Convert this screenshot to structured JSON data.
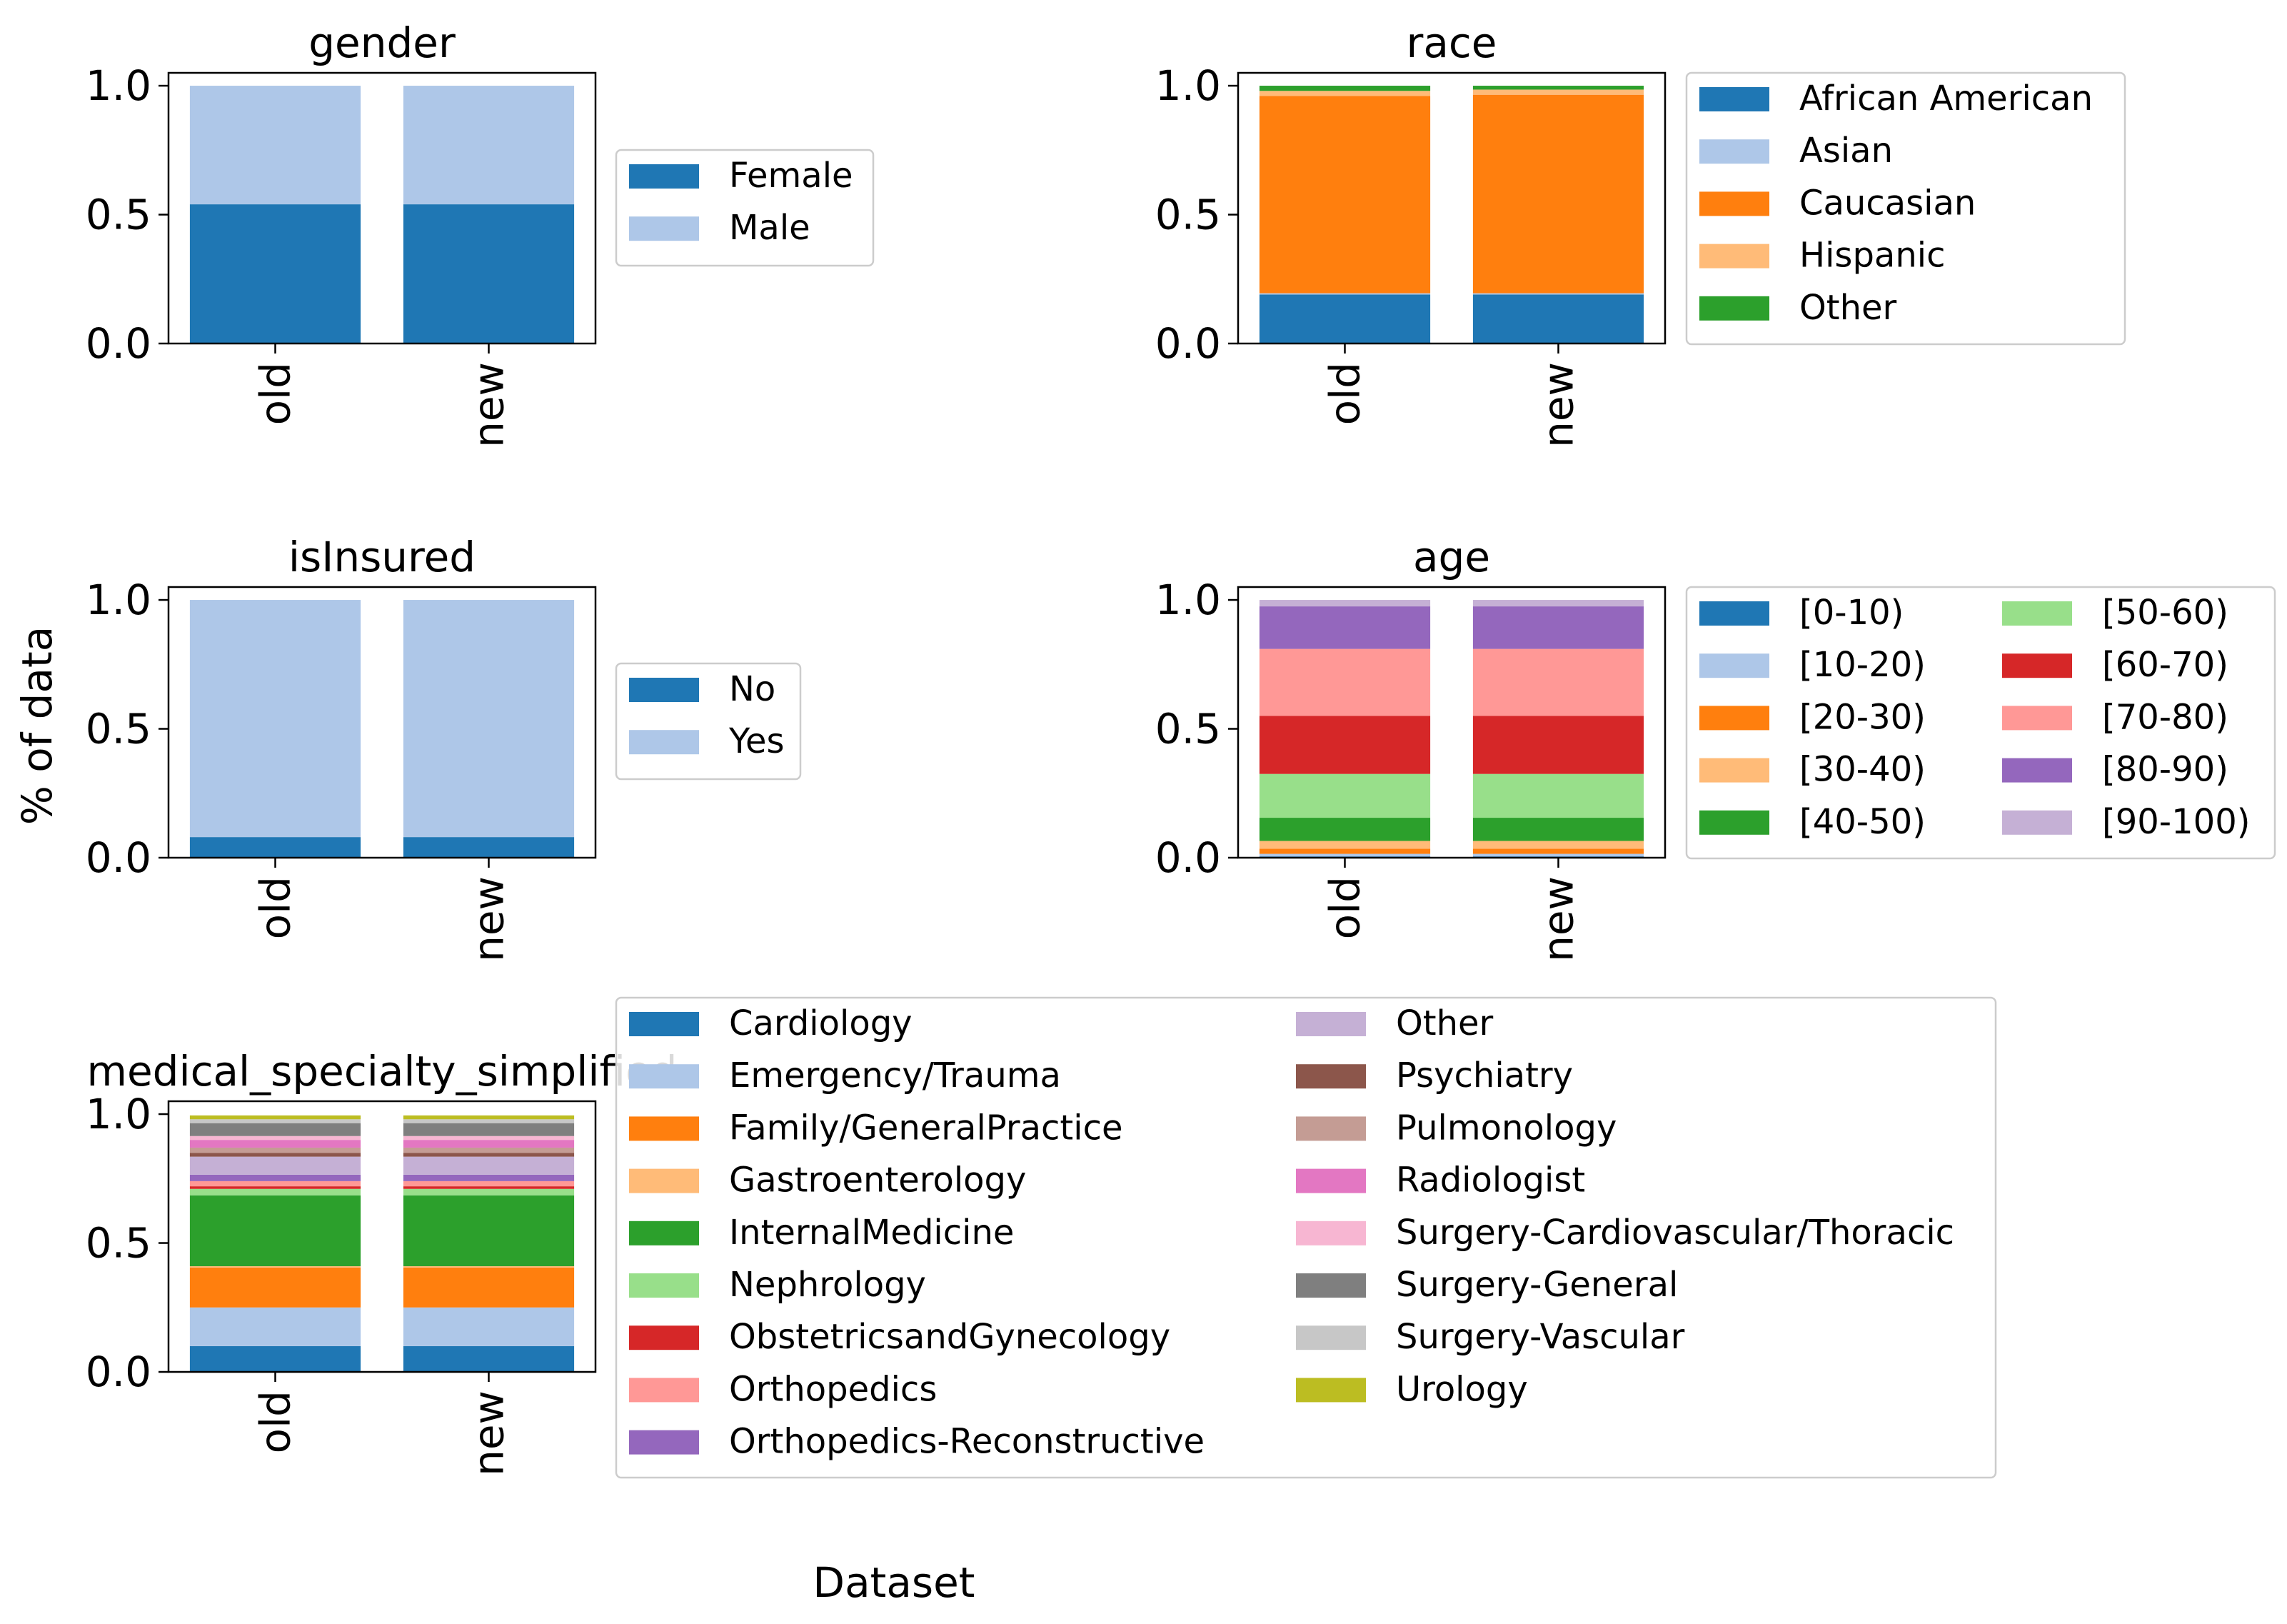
{
  "figure": {
    "ylabel": "% of data",
    "xlabel": "Dataset"
  },
  "chart_data": [
    {
      "type": "bar",
      "stacked": true,
      "title": "gender",
      "categories": [
        "old",
        "new"
      ],
      "ylim": [
        0,
        1.05
      ],
      "yticks": [
        "0.0",
        "0.5",
        "1.0"
      ],
      "legend_placement": "right",
      "legend_columns": 1,
      "series": [
        {
          "name": "Female",
          "color": "#1f77b4",
          "values": [
            0.54,
            0.54
          ]
        },
        {
          "name": "Male",
          "color": "#aec7e8",
          "values": [
            0.46,
            0.46
          ]
        }
      ]
    },
    {
      "type": "bar",
      "stacked": true,
      "title": "race",
      "categories": [
        "old",
        "new"
      ],
      "ylim": [
        0,
        1.05
      ],
      "yticks": [
        "0.0",
        "0.5",
        "1.0"
      ],
      "legend_placement": "right",
      "legend_columns": 1,
      "series": [
        {
          "name": "African American",
          "color": "#1f77b4",
          "values": [
            0.19,
            0.19
          ]
        },
        {
          "name": "Asian",
          "color": "#aec7e8",
          "values": [
            0.005,
            0.005
          ]
        },
        {
          "name": "Caucasian",
          "color": "#ff7f0e",
          "values": [
            0.765,
            0.77
          ]
        },
        {
          "name": "Hispanic",
          "color": "#ffbb78",
          "values": [
            0.02,
            0.02
          ]
        },
        {
          "name": "Other",
          "color": "#2ca02c",
          "values": [
            0.02,
            0.015
          ]
        }
      ]
    },
    {
      "type": "bar",
      "stacked": true,
      "title": "isInsured",
      "categories": [
        "old",
        "new"
      ],
      "ylim": [
        0,
        1.05
      ],
      "yticks": [
        "0.0",
        "0.5",
        "1.0"
      ],
      "legend_placement": "right",
      "legend_columns": 1,
      "series": [
        {
          "name": "No",
          "color": "#1f77b4",
          "values": [
            0.08,
            0.08
          ]
        },
        {
          "name": "Yes",
          "color": "#aec7e8",
          "values": [
            0.92,
            0.92
          ]
        }
      ]
    },
    {
      "type": "bar",
      "stacked": true,
      "title": "age",
      "categories": [
        "old",
        "new"
      ],
      "ylim": [
        0,
        1.05
      ],
      "yticks": [
        "0.0",
        "0.5",
        "1.0"
      ],
      "legend_placement": "right",
      "legend_columns": 2,
      "series": [
        {
          "name": "[0-10)",
          "color": "#1f77b4",
          "values": [
            0.005,
            0.005
          ]
        },
        {
          "name": "[10-20)",
          "color": "#aec7e8",
          "values": [
            0.01,
            0.01
          ]
        },
        {
          "name": "[20-30)",
          "color": "#ff7f0e",
          "values": [
            0.02,
            0.02
          ]
        },
        {
          "name": "[30-40)",
          "color": "#ffbb78",
          "values": [
            0.03,
            0.03
          ]
        },
        {
          "name": "[40-50)",
          "color": "#2ca02c",
          "values": [
            0.09,
            0.09
          ]
        },
        {
          "name": "[50-60)",
          "color": "#98df8a",
          "values": [
            0.17,
            0.17
          ]
        },
        {
          "name": "[60-70)",
          "color": "#d62728",
          "values": [
            0.225,
            0.225
          ]
        },
        {
          "name": "[70-80)",
          "color": "#ff9896",
          "values": [
            0.26,
            0.26
          ]
        },
        {
          "name": "[80-90)",
          "color": "#9467bd",
          "values": [
            0.165,
            0.165
          ]
        },
        {
          "name": "[90-100)",
          "color": "#c5b0d5",
          "values": [
            0.025,
            0.025
          ]
        }
      ]
    },
    {
      "type": "bar",
      "stacked": true,
      "title": "medical_specialty_simplified",
      "categories": [
        "old",
        "new"
      ],
      "ylim": [
        0,
        1.05
      ],
      "yticks": [
        "0.0",
        "0.5",
        "1.0"
      ],
      "legend_placement": "right",
      "legend_columns": 2,
      "series": [
        {
          "name": "Cardiology",
          "color": "#1f77b4",
          "values": [
            0.1,
            0.1
          ]
        },
        {
          "name": "Emergency/Trauma",
          "color": "#aec7e8",
          "values": [
            0.15,
            0.15
          ]
        },
        {
          "name": "Family/GeneralPractice",
          "color": "#ff7f0e",
          "values": [
            0.155,
            0.155
          ]
        },
        {
          "name": "Gastroenterology",
          "color": "#ffbb78",
          "values": [
            0.005,
            0.005
          ]
        },
        {
          "name": "InternalMedicine",
          "color": "#2ca02c",
          "values": [
            0.275,
            0.275
          ]
        },
        {
          "name": "Nephrology",
          "color": "#98df8a",
          "values": [
            0.025,
            0.025
          ]
        },
        {
          "name": "ObstetricsandGynecology",
          "color": "#d62728",
          "values": [
            0.01,
            0.01
          ]
        },
        {
          "name": "Orthopedics",
          "color": "#ff9896",
          "values": [
            0.02,
            0.02
          ]
        },
        {
          "name": "Orthopedics-Reconstructive",
          "color": "#9467bd",
          "values": [
            0.025,
            0.025
          ]
        },
        {
          "name": "Other",
          "color": "#c5b0d5",
          "values": [
            0.07,
            0.07
          ]
        },
        {
          "name": "Psychiatry",
          "color": "#8c564b",
          "values": [
            0.015,
            0.015
          ]
        },
        {
          "name": "Pulmonology",
          "color": "#c49c94",
          "values": [
            0.02,
            0.02
          ]
        },
        {
          "name": "Radiologist",
          "color": "#e377c2",
          "values": [
            0.03,
            0.03
          ]
        },
        {
          "name": "Surgery-Cardiovascular/Thoracic",
          "color": "#f7b6d2",
          "values": [
            0.015,
            0.015
          ]
        },
        {
          "name": "Surgery-General",
          "color": "#7f7f7f",
          "values": [
            0.05,
            0.05
          ]
        },
        {
          "name": "Surgery-Vascular",
          "color": "#c7c7c7",
          "values": [
            0.015,
            0.015
          ]
        },
        {
          "name": "Urology",
          "color": "#bcbd22",
          "values": [
            0.015,
            0.015
          ]
        }
      ]
    }
  ]
}
